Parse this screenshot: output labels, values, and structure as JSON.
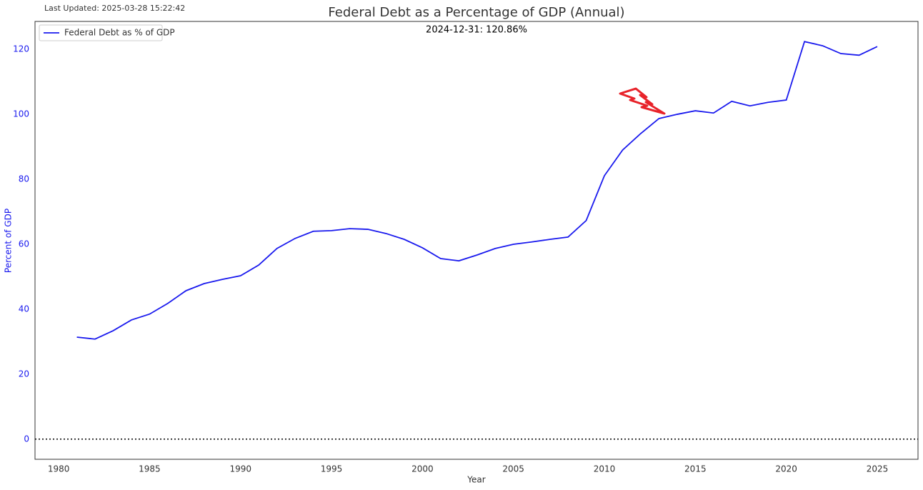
{
  "chart_data": {
    "type": "line",
    "title": "Federal Debt as a Percentage of GDP (Annual)",
    "updated": "Last Updated: 2025-03-28 15:22:42",
    "annotation": "2024-12-31: 120.86%",
    "xlabel": "Year",
    "ylabel": "Percent of GDP",
    "x": [
      1981,
      1982,
      1983,
      1984,
      1985,
      1986,
      1987,
      1988,
      1989,
      1990,
      1991,
      1992,
      1993,
      1994,
      1995,
      1996,
      1997,
      1998,
      1999,
      2000,
      2001,
      2002,
      2003,
      2004,
      2005,
      2006,
      2007,
      2008,
      2009,
      2010,
      2011,
      2012,
      2013,
      2014,
      2015,
      2016,
      2017,
      2018,
      2019,
      2020,
      2021,
      2022,
      2023,
      2024,
      2025
    ],
    "series": [
      {
        "name": "Federal Debt as % of GDP",
        "color": "#1a1aee",
        "values": [
          31.4,
          30.8,
          33.4,
          36.7,
          38.5,
          41.8,
          45.7,
          47.9,
          49.2,
          50.3,
          53.6,
          58.7,
          61.8,
          64.0,
          64.2,
          64.8,
          64.6,
          63.3,
          61.5,
          58.9,
          55.6,
          54.9,
          56.7,
          58.7,
          60.0,
          60.7,
          61.5,
          62.2,
          67.3,
          81.1,
          89.0,
          94.1,
          98.7,
          100.0,
          101.1,
          100.4,
          104.0,
          102.6,
          103.7,
          104.4,
          122.4,
          121.1,
          118.7,
          118.2,
          120.86
        ]
      }
    ],
    "xlim": [
      1978.7,
      2027.24
    ],
    "ylim": [
      -6.2,
      128.6
    ],
    "xticks": [
      1980,
      1985,
      1990,
      1995,
      2000,
      2005,
      2010,
      2015,
      2020,
      2025
    ],
    "yticks": [
      0,
      20,
      40,
      60,
      80,
      100,
      120
    ],
    "hline": 0,
    "grid": false,
    "legend": "upper left",
    "ytick_color": "#1a1aee"
  }
}
